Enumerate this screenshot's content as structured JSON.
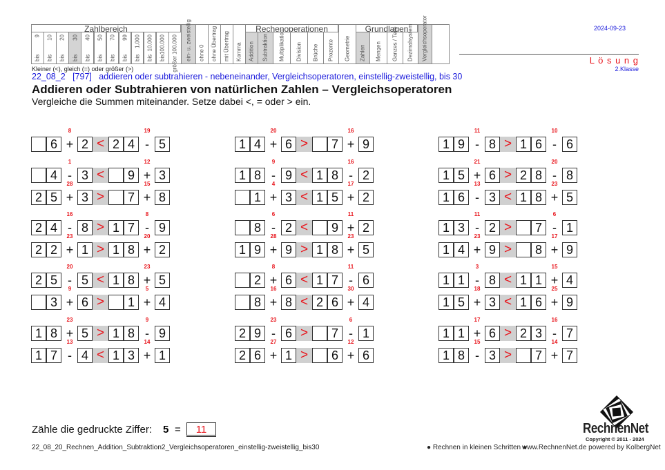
{
  "header": {
    "groups": {
      "zahlbereich": "Zahlbereich",
      "rechenoperationen": "Rechenoperationen",
      "grundlagen": "Grundlagen"
    },
    "range_columns": [
      {
        "top": "9",
        "bottom": "bis",
        "active": false
      },
      {
        "top": "10",
        "bottom": "bis",
        "active": false
      },
      {
        "top": "20",
        "bottom": "bis",
        "active": false
      },
      {
        "top": "30",
        "bottom": "bis",
        "active": true
      },
      {
        "top": "40",
        "bottom": "bis",
        "active": false
      },
      {
        "top": "50",
        "bottom": "bis",
        "active": false
      },
      {
        "top": "70",
        "bottom": "bis",
        "active": false
      },
      {
        "top": "99",
        "bottom": "bis",
        "active": false
      },
      {
        "top": "1.000",
        "bottom": "bis",
        "active": false
      },
      {
        "top": "10.000",
        "bottom": "bis",
        "active": false
      },
      {
        "top": "100.000",
        "bottom": "bis",
        "active": false
      },
      {
        "top": "größer 100.000",
        "bottom": "",
        "active": false
      }
    ],
    "columns": [
      {
        "label": "ein- u. zweistellig",
        "active": true
      },
      {
        "label": "ohne 0",
        "active": false
      },
      {
        "label": "ohne Übertrag",
        "active": false
      },
      {
        "label": "mit Übertrag",
        "active": false
      },
      {
        "label": "Komma",
        "active": false
      },
      {
        "label": "Addition",
        "active": true
      },
      {
        "label": "Subtraktion",
        "active": true
      },
      {
        "label": "Multiplikation",
        "active": false
      },
      {
        "label": "Division",
        "active": false
      },
      {
        "label": "Brüche",
        "active": false
      },
      {
        "label": "Prozente",
        "active": false
      },
      {
        "label": "Geometrie",
        "active": false
      },
      {
        "label": "Zahlen",
        "active": true
      },
      {
        "label": "Mengen",
        "active": false
      },
      {
        "label": "Ganzes / Teile",
        "active": false
      },
      {
        "label": "Dezimalsystem",
        "active": false
      },
      {
        "label": "Vergleichsoperator",
        "active": true
      },
      {
        "label": "",
        "active": false
      }
    ],
    "date": "2024-09-23",
    "loesung": "L ö s u n g",
    "klasse": "2.Klasse"
  },
  "intro": {
    "legend": "Kleiner (<), gleich (=) oder größer (>)",
    "code_line": "22_08_2   [797]   addieren oder subtrahieren - nebeneinander, Vergleichsoperatoren, einstellig-zweistellig, bis 30",
    "title": "Addieren oder Subtrahieren von natürlichen Zahlen – Vergleichsoperatoren",
    "instruction": "Vergleiche die Summen miteinander. Setze dabei <, = oder > ein."
  },
  "exercises": [
    [
      [
        "6",
        "+",
        "2",
        "<",
        "24",
        "-",
        "5",
        "8",
        "19"
      ],
      [
        "4",
        "-",
        "3",
        "<",
        "9",
        "+",
        "3",
        "1",
        "12"
      ],
      [
        "25",
        "+",
        "3",
        ">",
        "7",
        "+",
        "8",
        "28",
        "15"
      ],
      [
        "24",
        "-",
        "8",
        ">",
        "17",
        "-",
        "9",
        "16",
        "8"
      ],
      [
        "22",
        "+",
        "1",
        ">",
        "18",
        "+",
        "2",
        "23",
        "20"
      ],
      [
        "25",
        "-",
        "5",
        "<",
        "18",
        "+",
        "5",
        "20",
        "23"
      ],
      [
        "3",
        "+",
        "6",
        ">",
        "1",
        "+",
        "4",
        "9",
        "5"
      ],
      [
        "18",
        "+",
        "5",
        ">",
        "18",
        "-",
        "9",
        "23",
        "9"
      ],
      [
        "17",
        "-",
        "4",
        "<",
        "13",
        "+",
        "1",
        "13",
        "14"
      ]
    ],
    [
      [
        "14",
        "+",
        "6",
        ">",
        "7",
        "+",
        "9",
        "20",
        "16"
      ],
      [
        "18",
        "-",
        "9",
        "<",
        "18",
        "-",
        "2",
        "9",
        "16"
      ],
      [
        "1",
        "+",
        "3",
        "<",
        "15",
        "+",
        "2",
        "4",
        "17"
      ],
      [
        "8",
        "-",
        "2",
        "<",
        "9",
        "+",
        "2",
        "6",
        "11"
      ],
      [
        "19",
        "+",
        "9",
        ">",
        "18",
        "+",
        "5",
        "28",
        "23"
      ],
      [
        "2",
        "+",
        "6",
        "<",
        "17",
        "-",
        "6",
        "8",
        "11"
      ],
      [
        "8",
        "+",
        "8",
        "<",
        "26",
        "+",
        "4",
        "16",
        "30"
      ],
      [
        "29",
        "-",
        "6",
        ">",
        "7",
        "-",
        "1",
        "23",
        "6"
      ],
      [
        "26",
        "+",
        "1",
        ">",
        "6",
        "+",
        "6",
        "27",
        "12"
      ]
    ],
    [
      [
        "19",
        "-",
        "8",
        ">",
        "16",
        "-",
        "6",
        "11",
        "10"
      ],
      [
        "15",
        "+",
        "6",
        ">",
        "28",
        "-",
        "8",
        "21",
        "20"
      ],
      [
        "16",
        "-",
        "3",
        "<",
        "18",
        "+",
        "5",
        "13",
        "23"
      ],
      [
        "13",
        "-",
        "2",
        ">",
        "7",
        "-",
        "1",
        "11",
        "6"
      ],
      [
        "14",
        "+",
        "9",
        ">",
        "8",
        "+",
        "9",
        "23",
        "17"
      ],
      [
        "11",
        "-",
        "8",
        "<",
        "11",
        "+",
        "4",
        "3",
        "15"
      ],
      [
        "15",
        "+",
        "3",
        "<",
        "16",
        "+",
        "9",
        "18",
        "25"
      ],
      [
        "11",
        "+",
        "6",
        ">",
        "23",
        "-",
        "7",
        "17",
        "16"
      ],
      [
        "18",
        "-",
        "3",
        ">",
        "7",
        "+",
        "7",
        "15",
        "14"
      ]
    ]
  ],
  "count": {
    "label": "Zähle die gedruckte Ziffer:",
    "digit": "5",
    "equals": "=",
    "answer": "11"
  },
  "footer": {
    "filename": "22_08_20_Rechnen_Addition_Subtraktion2_Vergleichsoperatoren_einstellig-zweistellig_bis30",
    "slogan": "● Rechnen in kleinen Schritten ●",
    "site": "www.RechnenNet.de powered by KolbergNet",
    "logo_text": "RechnenNet",
    "copyright": "Copyright © 2011 - 2024"
  },
  "colors": {
    "accent_red": "#e8141b",
    "link_blue": "#1a1adb",
    "highlight_gray": "#d0d0d0"
  }
}
